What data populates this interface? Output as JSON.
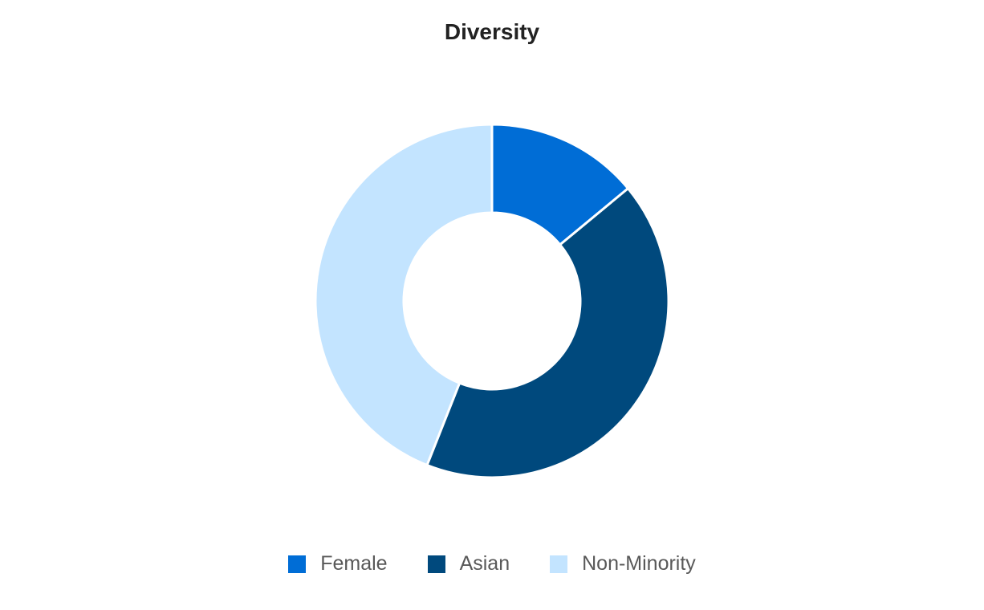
{
  "chart_data": {
    "type": "pie",
    "title": "Diversity",
    "categories": [
      "Female",
      "Asian",
      "Non-Minority"
    ],
    "values": [
      14,
      42,
      44
    ],
    "colors": [
      "#006dd6",
      "#00497d",
      "#c3e4ff"
    ],
    "hole": 0.5,
    "legend": "bottom-center"
  }
}
